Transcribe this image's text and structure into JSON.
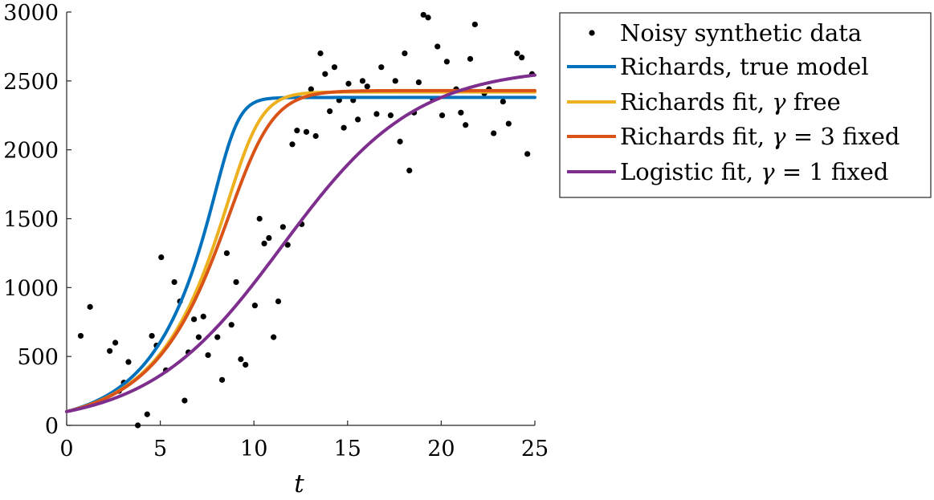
{
  "chart_data": {
    "type": "line",
    "title": "",
    "xlabel": "t",
    "ylabel": "",
    "xlim": [
      0,
      25
    ],
    "ylim": [
      0,
      3000
    ],
    "xticks": [
      "0",
      "5",
      "10",
      "15",
      "20",
      "25"
    ],
    "yticks": [
      "0",
      "500",
      "1000",
      "1500",
      "2000",
      "2500",
      "3000"
    ],
    "grid": false,
    "legend_position": "outside-top-right",
    "scatter": {
      "name": "Noisy synthetic data",
      "color": "#000000",
      "points": [
        [
          0.75,
          650
        ],
        [
          1.25,
          860
        ],
        [
          2.3,
          540
        ],
        [
          2.6,
          600
        ],
        [
          2.8,
          250
        ],
        [
          3.05,
          310
        ],
        [
          3.3,
          460
        ],
        [
          3.8,
          0
        ],
        [
          4.3,
          80
        ],
        [
          4.55,
          650
        ],
        [
          4.8,
          580
        ],
        [
          5.05,
          1220
        ],
        [
          5.3,
          400
        ],
        [
          5.75,
          1040
        ],
        [
          6.05,
          900
        ],
        [
          6.3,
          180
        ],
        [
          6.5,
          530
        ],
        [
          6.8,
          770
        ],
        [
          7.05,
          640
        ],
        [
          7.3,
          790
        ],
        [
          7.55,
          510
        ],
        [
          8.05,
          640
        ],
        [
          8.3,
          330
        ],
        [
          8.55,
          1250
        ],
        [
          8.8,
          730
        ],
        [
          9.05,
          1040
        ],
        [
          9.3,
          480
        ],
        [
          9.55,
          440
        ],
        [
          10.05,
          870
        ],
        [
          10.3,
          1500
        ],
        [
          10.55,
          1320
        ],
        [
          10.8,
          1360
        ],
        [
          11.05,
          640
        ],
        [
          11.3,
          900
        ],
        [
          11.55,
          1440
        ],
        [
          11.8,
          1310
        ],
        [
          12.05,
          2040
        ],
        [
          12.3,
          2140
        ],
        [
          12.55,
          1460
        ],
        [
          12.8,
          2130
        ],
        [
          13.05,
          2440
        ],
        [
          13.3,
          2100
        ],
        [
          13.55,
          2700
        ],
        [
          13.8,
          2550
        ],
        [
          14.05,
          2280
        ],
        [
          14.3,
          2600
        ],
        [
          14.55,
          2360
        ],
        [
          14.8,
          2160
        ],
        [
          15.05,
          2480
        ],
        [
          15.3,
          2360
        ],
        [
          15.55,
          2220
        ],
        [
          15.8,
          2500
        ],
        [
          16.05,
          2460
        ],
        [
          16.55,
          2260
        ],
        [
          16.8,
          2600
        ],
        [
          17.3,
          2250
        ],
        [
          17.55,
          2500
        ],
        [
          17.8,
          2060
        ],
        [
          18.05,
          2700
        ],
        [
          18.3,
          1850
        ],
        [
          18.55,
          2270
        ],
        [
          18.8,
          2490
        ],
        [
          19.05,
          2980
        ],
        [
          19.3,
          2960
        ],
        [
          19.55,
          2370
        ],
        [
          19.8,
          2750
        ],
        [
          20.05,
          2250
        ],
        [
          20.3,
          2640
        ],
        [
          20.8,
          2440
        ],
        [
          21.05,
          2270
        ],
        [
          21.3,
          2180
        ],
        [
          21.55,
          2660
        ],
        [
          21.8,
          2910
        ],
        [
          22.3,
          2410
        ],
        [
          22.55,
          2440
        ],
        [
          22.8,
          2120
        ],
        [
          23.3,
          2350
        ],
        [
          23.6,
          2190
        ],
        [
          24.05,
          2700
        ],
        [
          24.3,
          2670
        ],
        [
          24.6,
          1970
        ],
        [
          24.85,
          2550
        ]
      ]
    },
    "series": [
      {
        "name": "Richards, true model",
        "color": "#0072BD",
        "model": "richards",
        "K": 2380,
        "r": 0.36,
        "gamma": 5.5,
        "C0": 100
      },
      {
        "name": "Richards fit, γ free",
        "color": "#EDB120",
        "model": "richards",
        "K": 2420,
        "r": 0.33,
        "gamma": 4.0,
        "C0": 100
      },
      {
        "name": "Richards fit, γ = 3 fixed",
        "color": "#D95319",
        "model": "richards",
        "K": 2430,
        "r": 0.325,
        "gamma": 3.0,
        "C0": 100
      },
      {
        "name": "Logistic fit, γ = 1 fixed",
        "color": "#7E2F8E",
        "model": "richards",
        "K": 2600,
        "r": 0.28,
        "gamma": 1.0,
        "C0": 100
      }
    ]
  },
  "legend": {
    "entries": [
      {
        "label_parts": [
          "Noisy synthetic data"
        ]
      },
      {
        "label_parts": [
          "Richards, true model"
        ]
      },
      {
        "label_parts": [
          "Richards fit, ",
          "γ",
          " free"
        ]
      },
      {
        "label_parts": [
          "Richards fit, ",
          "γ",
          " = 3 fixed"
        ]
      },
      {
        "label_parts": [
          "Logistic fit, ",
          "γ",
          " = 1 fixed"
        ]
      }
    ]
  }
}
